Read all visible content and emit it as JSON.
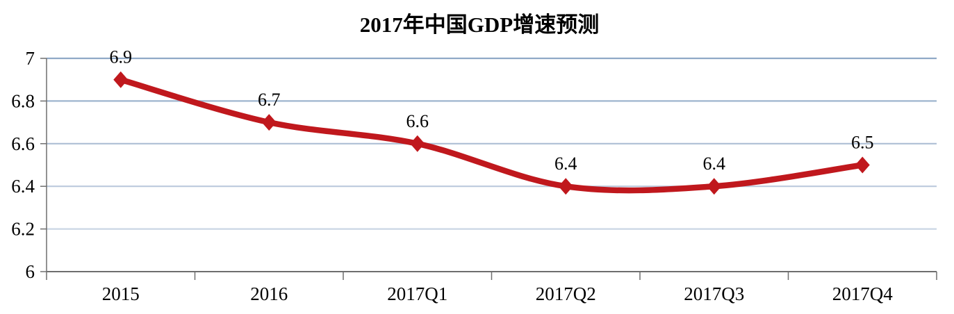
{
  "page": {
    "background": "#ffffff"
  },
  "chart_data": {
    "type": "line",
    "title": "2017年中国GDP增速预测",
    "categories": [
      "2015",
      "2016",
      "2017Q1",
      "2017Q2",
      "2017Q3",
      "2017Q4"
    ],
    "series": [
      {
        "name": "GDP增速",
        "values": [
          6.9,
          6.7,
          6.6,
          6.4,
          6.4,
          6.5
        ]
      }
    ],
    "data_labels": [
      "6.9",
      "6.7",
      "6.6",
      "6.4",
      "6.4",
      "6.5"
    ],
    "xlabel": "",
    "ylabel": "",
    "ylim": [
      6,
      7
    ],
    "yticks": [
      {
        "value": 6,
        "label": "6"
      },
      {
        "value": 6.2,
        "label": "6.2"
      },
      {
        "value": 6.4,
        "label": "6.4"
      },
      {
        "value": 6.6,
        "label": "6.6"
      },
      {
        "value": 6.8,
        "label": "6.8"
      },
      {
        "value": 7,
        "label": "7"
      }
    ],
    "grid": "horizontal",
    "legend": "none",
    "line_style": "smooth",
    "marker": "diamond",
    "colors": {
      "line": "#C0181D",
      "marker": "#C0181D",
      "gridline": "#90A9C7",
      "axis": "#6E6E6E",
      "text": "#000000"
    }
  }
}
